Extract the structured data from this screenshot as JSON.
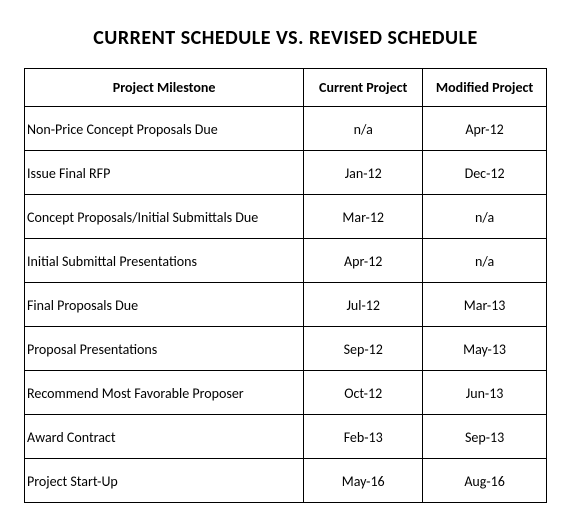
{
  "title": "CURRENT SCHEDULE VS. REVISED SCHEDULE",
  "table": {
    "columns": {
      "milestone": "Project Milestone",
      "current": "Current Project",
      "modified": "Modified Project"
    },
    "rows": [
      {
        "milestone": "Non-Price Concept Proposals Due",
        "current": "n/a",
        "modified": "Apr-12"
      },
      {
        "milestone": "Issue Final RFP",
        "current": "Jan-12",
        "modified": "Dec-12"
      },
      {
        "milestone": "Concept Proposals/Initial Submittals Due",
        "current": "Mar-12",
        "modified": "n/a"
      },
      {
        "milestone": "Initial Submittal Presentations",
        "current": "Apr-12",
        "modified": "n/a"
      },
      {
        "milestone": "Final Proposals Due",
        "current": "Jul-12",
        "modified": "Mar-13"
      },
      {
        "milestone": "Proposal Presentations",
        "current": "Sep-12",
        "modified": "May-13"
      },
      {
        "milestone": "Recommend Most Favorable Proposer",
        "current": "Oct-12",
        "modified": "Jun-13"
      },
      {
        "milestone": "Award Contract",
        "current": "Feb-13",
        "modified": "Sep-13"
      },
      {
        "milestone": "Project Start-Up",
        "current": "May-16",
        "modified": "Aug-16"
      }
    ]
  },
  "style": {
    "background_color": "#ffffff",
    "border_color": "#000000",
    "text_color": "#000000",
    "title_fontsize": 20,
    "header_fontsize": 14,
    "cell_fontsize": 14,
    "col_widths_pct": [
      55,
      22,
      23
    ]
  }
}
